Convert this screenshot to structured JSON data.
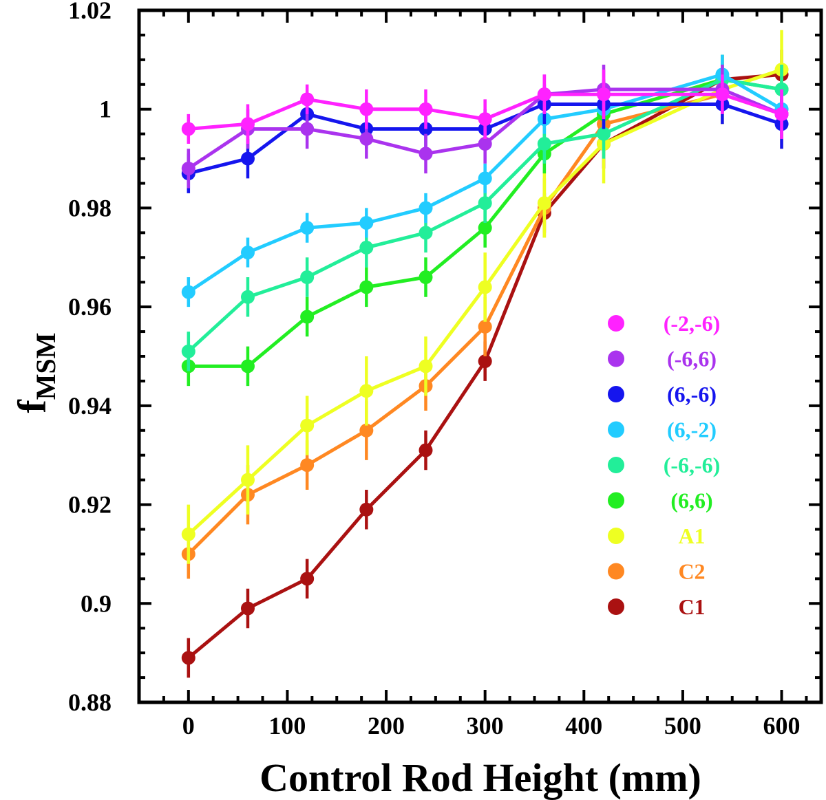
{
  "chart_data": {
    "type": "line",
    "xlabel": "Control Rod Height (mm)",
    "ylabel": {
      "main": "f",
      "sub": "MSM"
    },
    "xlim": [
      -50,
      640
    ],
    "ylim": [
      0.88,
      1.02
    ],
    "xticks": [
      0,
      100,
      200,
      300,
      400,
      500,
      600
    ],
    "yticks": [
      0.88,
      0.9,
      0.92,
      0.94,
      0.96,
      0.98,
      1,
      1.02
    ],
    "ytick_labels": [
      "0.88",
      "0.9",
      "0.92",
      "0.94",
      "0.96",
      "0.98",
      "1",
      "1.02"
    ],
    "grid": false,
    "legend_position": "center-right",
    "series": [
      {
        "name": "(-2,-6)",
        "color": "#ff22ff",
        "x": [
          0,
          60,
          120,
          180,
          240,
          300,
          360,
          420,
          540,
          600
        ],
        "y": [
          0.996,
          0.997,
          1.002,
          1.0,
          1.0,
          0.998,
          1.003,
          1.003,
          1.003,
          0.999
        ],
        "err": [
          0.003,
          0.004,
          0.003,
          0.004,
          0.004,
          0.004,
          0.004,
          0.005,
          0.004,
          0.005
        ]
      },
      {
        "name": "(-6,6)",
        "color": "#aa33ee",
        "x": [
          0,
          60,
          120,
          180,
          240,
          300,
          360,
          420,
          540,
          600
        ],
        "y": [
          0.988,
          0.996,
          0.996,
          0.994,
          0.991,
          0.993,
          1.003,
          1.004,
          1.004,
          0.999
        ],
        "err": [
          0.004,
          0.004,
          0.004,
          0.004,
          0.004,
          0.004,
          0.004,
          0.005,
          0.005,
          0.005
        ]
      },
      {
        "name": "(6,-6)",
        "color": "#1515ee",
        "x": [
          0,
          60,
          120,
          180,
          240,
          300,
          360,
          420,
          540,
          600
        ],
        "y": [
          0.987,
          0.99,
          0.999,
          0.996,
          0.996,
          0.996,
          1.001,
          1.001,
          1.001,
          0.997
        ],
        "err": [
          0.004,
          0.004,
          0.004,
          0.004,
          0.004,
          0.004,
          0.004,
          0.005,
          0.004,
          0.005
        ]
      },
      {
        "name": "(6,-2)",
        "color": "#22ccff",
        "x": [
          0,
          60,
          120,
          180,
          240,
          300,
          360,
          420,
          540,
          600
        ],
        "y": [
          0.963,
          0.971,
          0.976,
          0.977,
          0.98,
          0.986,
          0.998,
          1.0,
          1.007,
          1.0
        ],
        "err": [
          0.003,
          0.003,
          0.003,
          0.003,
          0.003,
          0.003,
          0.003,
          0.004,
          0.004,
          0.004
        ]
      },
      {
        "name": "(-6,-6)",
        "color": "#22ee99",
        "x": [
          0,
          60,
          120,
          180,
          240,
          300,
          360,
          420,
          540,
          600
        ],
        "y": [
          0.951,
          0.962,
          0.966,
          0.972,
          0.975,
          0.981,
          0.993,
          0.995,
          1.006,
          1.004
        ],
        "err": [
          0.004,
          0.004,
          0.004,
          0.004,
          0.004,
          0.004,
          0.004,
          0.005,
          0.005,
          0.005
        ]
      },
      {
        "name": "(6,6)",
        "color": "#22ee22",
        "x": [
          0,
          60,
          120,
          180,
          240,
          300,
          360,
          420,
          540,
          600
        ],
        "y": [
          0.948,
          0.948,
          0.958,
          0.964,
          0.966,
          0.976,
          0.991,
          0.999,
          1.006,
          1.004
        ],
        "err": [
          0.004,
          0.004,
          0.004,
          0.004,
          0.004,
          0.004,
          0.004,
          0.005,
          0.005,
          0.005
        ]
      },
      {
        "name": "A1",
        "color": "#eeff22",
        "x": [
          0,
          60,
          120,
          180,
          240,
          300,
          360,
          420,
          540,
          600
        ],
        "y": [
          0.914,
          0.925,
          0.936,
          0.943,
          0.948,
          0.964,
          0.981,
          0.993,
          1.004,
          1.008
        ],
        "err": [
          0.006,
          0.007,
          0.006,
          0.007,
          0.006,
          0.007,
          0.007,
          0.008,
          0.007,
          0.008
        ]
      },
      {
        "name": "C2",
        "color": "#ff8822",
        "x": [
          0,
          60,
          120,
          180,
          240,
          300,
          360,
          420,
          540,
          600
        ],
        "y": [
          0.91,
          0.922,
          0.928,
          0.935,
          0.944,
          0.956,
          0.98,
          0.997,
          1.003,
          0.999
        ],
        "err": [
          0.005,
          0.006,
          0.005,
          0.006,
          0.005,
          0.006,
          0.006,
          0.006,
          0.006,
          0.007
        ]
      },
      {
        "name": "C1",
        "color": "#aa1111",
        "x": [
          0,
          60,
          120,
          180,
          240,
          300,
          360,
          420,
          540,
          600
        ],
        "y": [
          0.889,
          0.899,
          0.905,
          0.919,
          0.931,
          0.949,
          0.979,
          0.993,
          1.006,
          1.007
        ],
        "err": [
          0.004,
          0.004,
          0.004,
          0.004,
          0.004,
          0.004,
          0.004,
          0.005,
          0.005,
          0.005
        ]
      }
    ]
  }
}
